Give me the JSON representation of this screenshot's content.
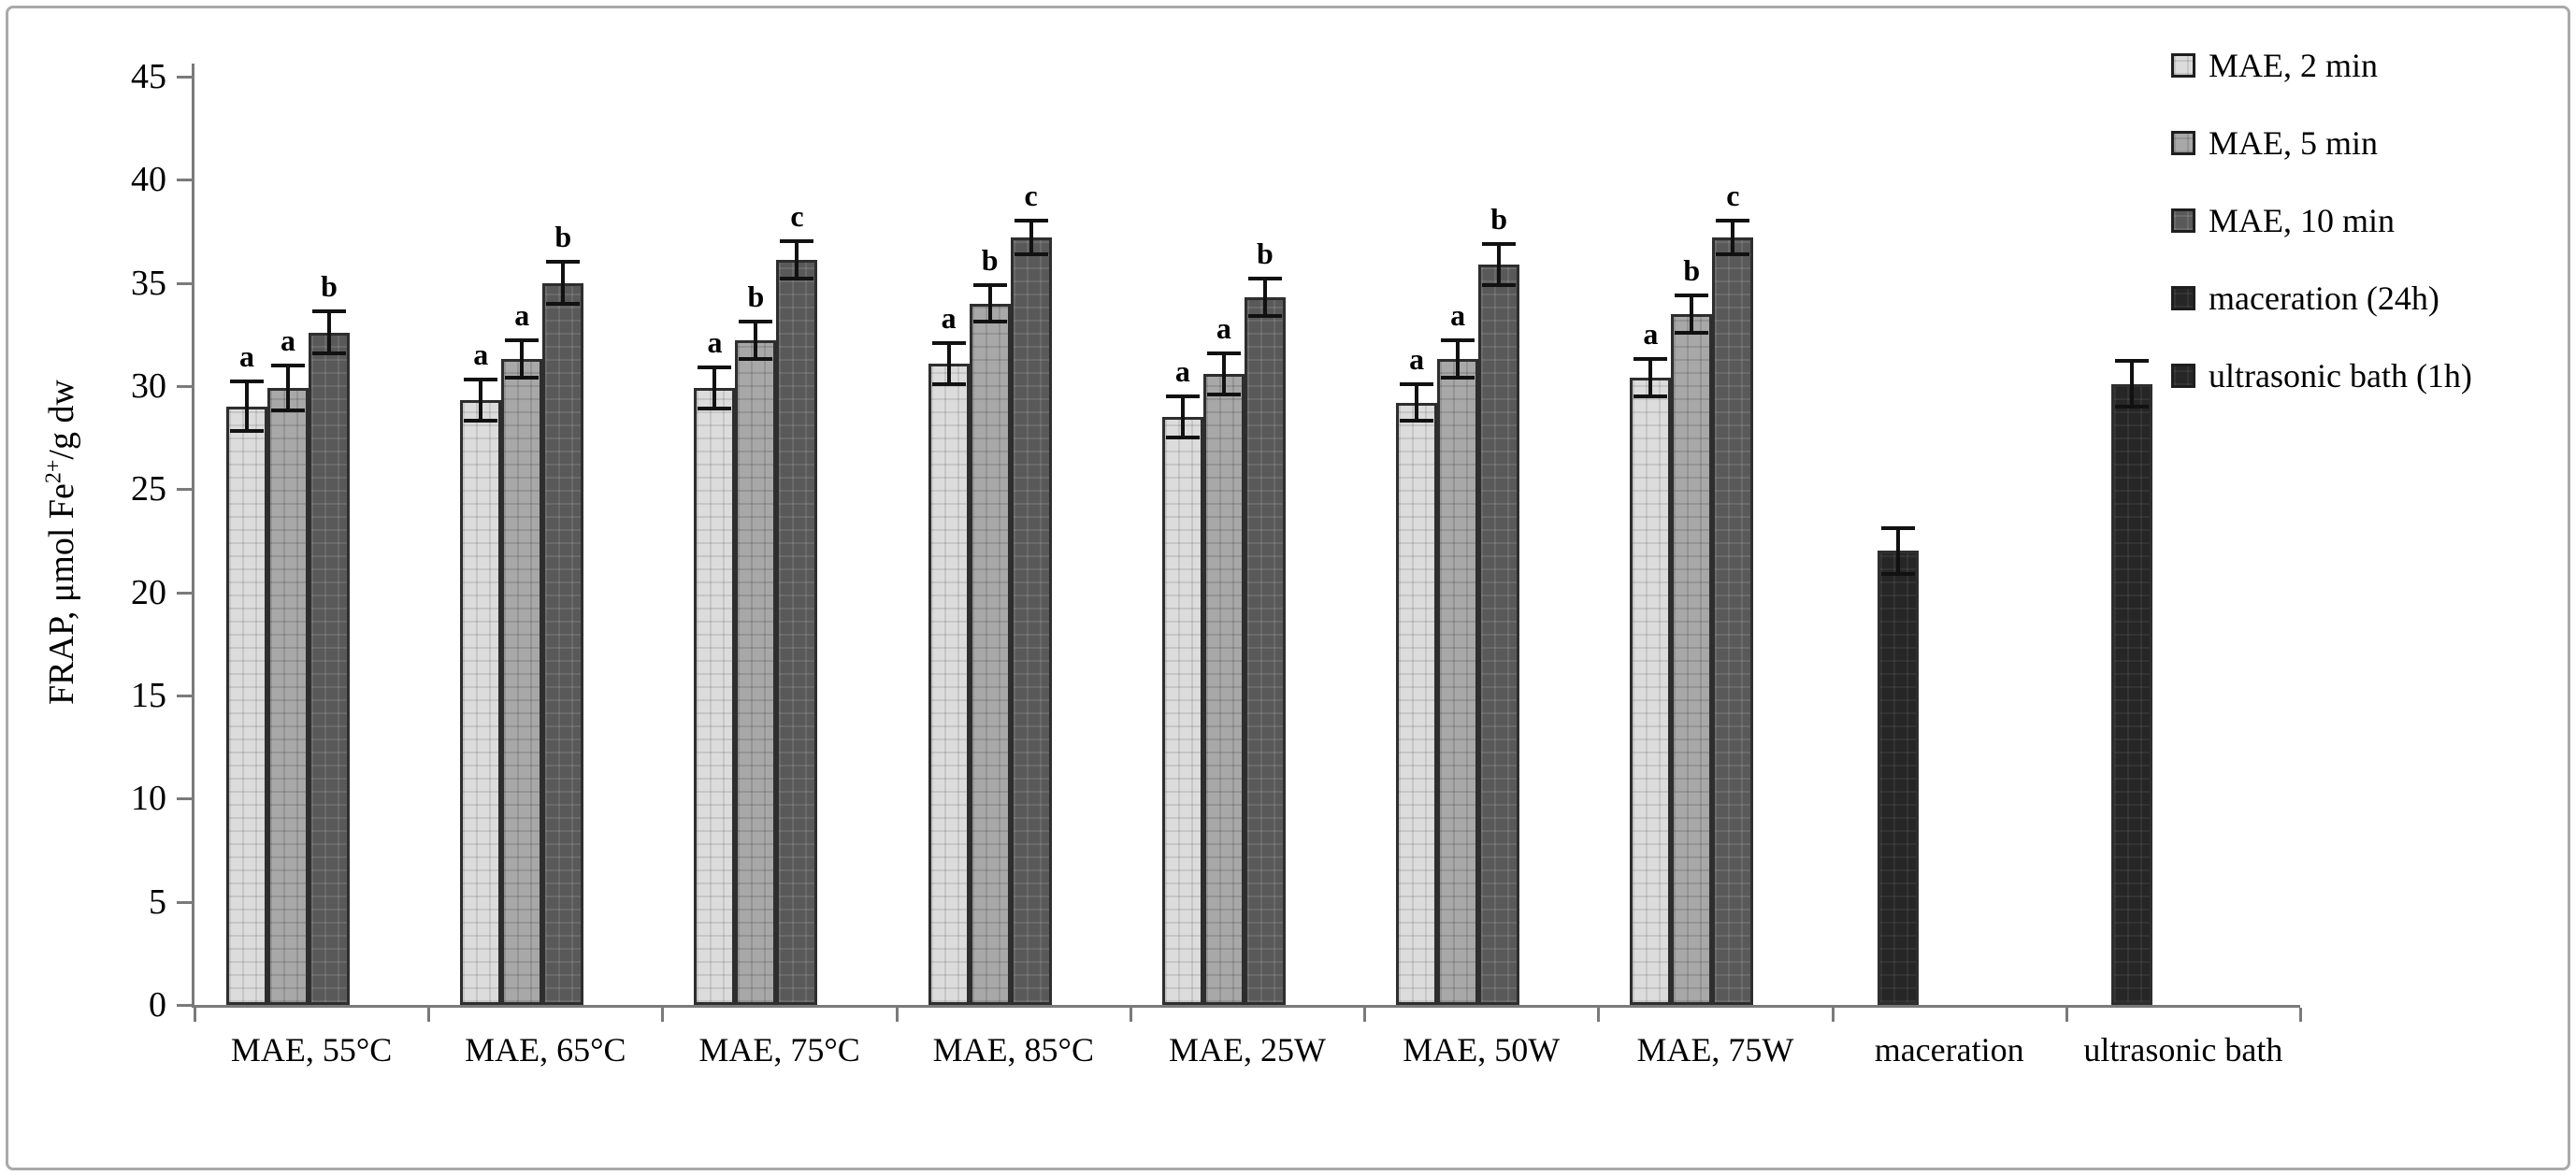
{
  "figure": {
    "ylabel_prefix": "FRAP, μmol Fe",
    "ylabel_sup": "2+",
    "ylabel_suffix": "/g dw"
  },
  "chart_data": {
    "type": "bar",
    "title": "",
    "xlabel": "",
    "ylabel": "FRAP, μmol Fe2+/g dw",
    "ylim": [
      0,
      45
    ],
    "yticks": [
      0,
      5,
      10,
      15,
      20,
      25,
      30,
      35,
      40,
      45
    ],
    "grid": false,
    "legend_position": "top-right",
    "error_bars": true,
    "categories": [
      "MAE, 55°C",
      "MAE, 65°C",
      "MAE, 75°C",
      "MAE, 85°C",
      "MAE, 25W",
      "MAE, 50W",
      "MAE, 75W",
      "maceration",
      "ultrasonic bath"
    ],
    "series": [
      {
        "name": "MAE, 2 min",
        "color": "#dcdcdc",
        "pattern": "pat-light",
        "values": [
          29.0,
          29.3,
          29.9,
          31.1,
          28.5,
          29.2,
          30.4,
          null,
          null
        ],
        "errors": [
          1.2,
          1.0,
          1.0,
          1.0,
          1.0,
          0.9,
          0.9,
          null,
          null
        ],
        "letters": [
          "a",
          "a",
          "a",
          "a",
          "a",
          "a",
          "a",
          null,
          null
        ]
      },
      {
        "name": "MAE, 5 min",
        "color": "#a8a8a8",
        "pattern": "pat-mid",
        "values": [
          29.9,
          31.3,
          32.2,
          34.0,
          30.6,
          31.3,
          33.5,
          null,
          null
        ],
        "errors": [
          1.1,
          0.9,
          0.9,
          0.9,
          1.0,
          0.9,
          0.9,
          null,
          null
        ],
        "letters": [
          "a",
          "a",
          "b",
          "b",
          "a",
          "a",
          "b",
          null,
          null
        ]
      },
      {
        "name": "MAE, 10 min",
        "color": "#595959",
        "pattern": "pat-dark",
        "values": [
          32.6,
          35.0,
          36.1,
          37.2,
          34.3,
          35.9,
          37.2,
          null,
          null
        ],
        "errors": [
          1.0,
          1.0,
          0.9,
          0.8,
          0.9,
          1.0,
          0.8,
          null,
          null
        ],
        "letters": [
          "b",
          "b",
          "c",
          "c",
          "b",
          "b",
          "c",
          null,
          null
        ]
      },
      {
        "name": "maceration (24h)",
        "color": "#262626",
        "pattern": "pat-black",
        "values": [
          null,
          null,
          null,
          null,
          null,
          null,
          null,
          22.0,
          null
        ],
        "errors": [
          null,
          null,
          null,
          null,
          null,
          null,
          null,
          1.1,
          null
        ],
        "letters": [
          null,
          null,
          null,
          null,
          null,
          null,
          null,
          null,
          null
        ]
      },
      {
        "name": "ultrasonic bath (1h)",
        "color": "#262626",
        "pattern": "pat-black",
        "values": [
          null,
          null,
          null,
          null,
          null,
          null,
          null,
          null,
          30.1
        ],
        "errors": [
          null,
          null,
          null,
          null,
          null,
          null,
          null,
          null,
          1.1
        ],
        "letters": [
          null,
          null,
          null,
          null,
          null,
          null,
          null,
          null,
          null
        ]
      }
    ]
  }
}
